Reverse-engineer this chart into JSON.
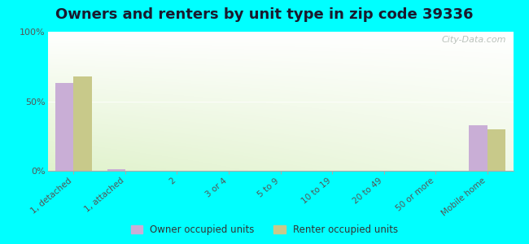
{
  "title": "Owners and renters by unit type in zip code 39336",
  "categories": [
    "1, detached",
    "1, attached",
    "2",
    "3 or 4",
    "5 to 9",
    "10 to 19",
    "20 to 49",
    "50 or more",
    "Mobile home"
  ],
  "owner_values": [
    63,
    1,
    0,
    0,
    0,
    0,
    0,
    0,
    33
  ],
  "renter_values": [
    68,
    0,
    0,
    0,
    0,
    0,
    0,
    0,
    30
  ],
  "owner_color": "#c9aed6",
  "renter_color": "#c8c98a",
  "ylim": [
    0,
    100
  ],
  "yticks": [
    0,
    50,
    100
  ],
  "ytick_labels": [
    "0%",
    "50%",
    "100%"
  ],
  "bg_top_left": "#e8f5d8",
  "bg_top_right": "#ffffff",
  "bg_bottom": "#d4edb0",
  "outer_background": "#00ffff",
  "bar_width": 0.35,
  "title_fontsize": 13,
  "watermark": "City-Data.com"
}
